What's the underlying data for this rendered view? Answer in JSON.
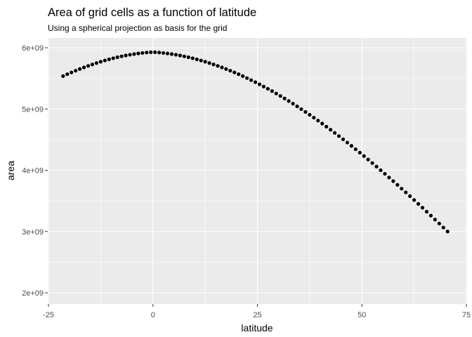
{
  "chart_data": {
    "type": "scatter",
    "title": "Area of grid cells as a function of latitude",
    "subtitle": "Using a spherical projection as basis for the grid",
    "xlabel": "latitude",
    "ylabel": "area",
    "xlim": [
      -25,
      75
    ],
    "ylim": [
      2000000000,
      6000000000
    ],
    "x_ticks": [
      -25,
      0,
      25,
      50,
      75
    ],
    "x_tick_labels": [
      "-25",
      "0",
      "25",
      "50",
      "75"
    ],
    "y_ticks": [
      2000000000,
      3000000000,
      4000000000,
      5000000000,
      6000000000
    ],
    "y_tick_labels": [
      "2e+09",
      "3e+09",
      "4e+09",
      "5e+09",
      "6e+09"
    ],
    "grid": true,
    "legend": "none",
    "colors": {
      "panel": "#ebebeb",
      "grid": "#ffffff",
      "point": "#000000"
    },
    "series": [
      {
        "x": [
          -21.5,
          -20.5,
          -19.5,
          -18.5,
          -17.5,
          -16.5,
          -15.5,
          -14.5,
          -13.5,
          -12.5,
          -11.5,
          -10.5,
          -9.5,
          -8.5,
          -7.5,
          -6.5,
          -5.5,
          -4.5,
          -3.5,
          -2.5,
          -1.5,
          -0.5,
          0.5,
          1.5,
          2.5,
          3.5,
          4.5,
          5.5,
          6.5,
          7.5,
          8.5,
          9.5,
          10.5,
          11.5,
          12.5,
          13.5,
          14.5,
          15.5,
          16.5,
          17.5,
          18.5,
          19.5,
          20.5,
          21.5,
          22.5,
          23.5,
          24.5,
          25.5,
          26.5,
          27.5,
          28.5,
          29.5,
          30.5,
          31.5,
          32.5,
          33.5,
          34.5,
          35.5,
          36.5,
          37.5,
          38.5,
          39.5,
          40.5,
          41.5,
          42.5,
          43.5,
          44.5,
          45.5,
          46.5,
          47.5,
          48.5,
          49.5,
          50.5,
          51.5,
          52.5,
          53.5,
          54.5,
          55.5,
          56.5,
          57.5,
          58.5,
          59.5,
          60.5,
          61.5,
          62.5,
          63.5,
          64.5,
          65.5,
          66.5,
          67.5,
          68.5,
          69.5,
          70.5
        ],
        "y": [
          5537000000,
          5568000000,
          5597000000,
          5625000000,
          5653000000,
          5679000000,
          5704000000,
          5728000000,
          5751000000,
          5772000000,
          5792000000,
          5811000000,
          5829000000,
          5845000000,
          5860000000,
          5874000000,
          5886000000,
          5897000000,
          5907000000,
          5915000000,
          5922000000,
          5927000000,
          5927000000,
          5922000000,
          5915000000,
          5907000000,
          5897000000,
          5886000000,
          5874000000,
          5860000000,
          5845000000,
          5829000000,
          5811000000,
          5792000000,
          5772000000,
          5751000000,
          5728000000,
          5704000000,
          5679000000,
          5653000000,
          5625000000,
          5597000000,
          5568000000,
          5537000000,
          5505000000,
          5472000000,
          5438000000,
          5403000000,
          5367000000,
          5330000000,
          5292000000,
          5253000000,
          5213000000,
          5172000000,
          5130000000,
          5087000000,
          5043000000,
          4998000000,
          4953000000,
          4906000000,
          4859000000,
          4811000000,
          4762000000,
          4712000000,
          4662000000,
          4610000000,
          4558000000,
          4506000000,
          4452000000,
          4398000000,
          4343000000,
          4288000000,
          4232000000,
          4175000000,
          4118000000,
          4060000000,
          4001000000,
          3942000000,
          3882000000,
          3822000000,
          3762000000,
          3700000000,
          3639000000,
          3577000000,
          3514000000,
          3451000000,
          3388000000,
          3324000000,
          3260000000,
          3195000000,
          3130000000,
          3065000000,
          3000000000
        ]
      }
    ]
  }
}
